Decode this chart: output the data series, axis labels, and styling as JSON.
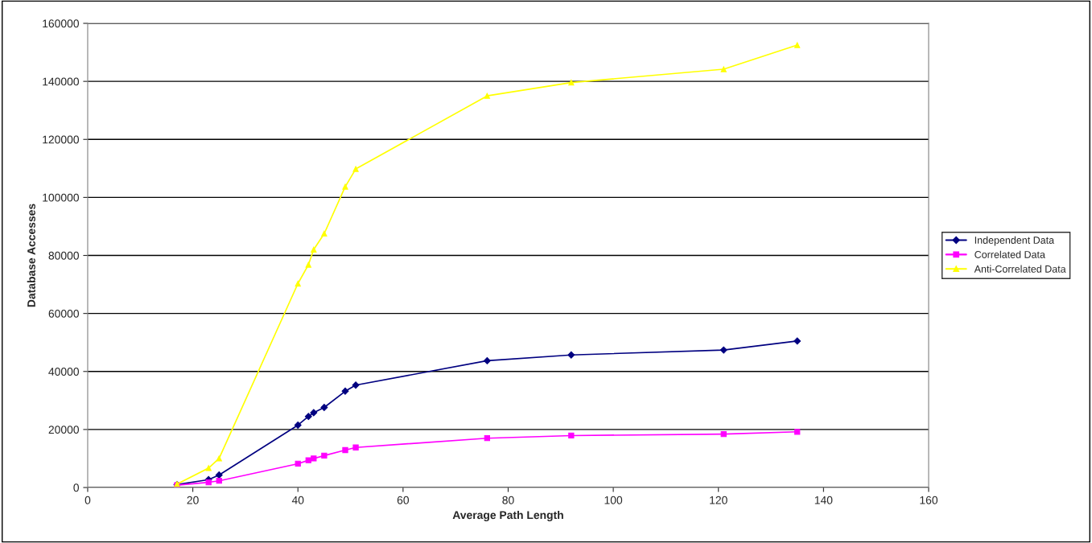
{
  "chart_data": {
    "type": "line",
    "xlabel": "Average Path Length",
    "ylabel": "Database Accesses",
    "x": [
      17,
      23,
      25,
      40,
      42,
      43,
      45,
      49,
      51,
      76,
      92,
      121,
      135
    ],
    "series": [
      {
        "name": "Independent Data",
        "color": "#000080",
        "marker": "diamond",
        "values": [
          1000,
          2700,
          4300,
          21500,
          24500,
          25800,
          27600,
          33200,
          35300,
          43700,
          45700,
          47400,
          50500
        ]
      },
      {
        "name": "Correlated Data",
        "color": "#ff00ff",
        "marker": "square",
        "values": [
          800,
          1800,
          2300,
          8200,
          9400,
          10000,
          11000,
          12900,
          13800,
          17000,
          17900,
          18400,
          19200
        ]
      },
      {
        "name": "Anti-Correlated Data",
        "color": "#ffff00",
        "marker": "triangle",
        "values": [
          1200,
          6700,
          10000,
          70300,
          76800,
          82000,
          87500,
          103700,
          109800,
          135000,
          139600,
          144200,
          152500
        ]
      }
    ],
    "xlim": [
      0,
      160
    ],
    "xticks": [
      0,
      20,
      40,
      60,
      80,
      100,
      120,
      140,
      160
    ],
    "ylim": [
      0,
      160000
    ],
    "yticks": [
      0,
      20000,
      40000,
      60000,
      80000,
      100000,
      120000,
      140000,
      160000
    ],
    "grid": "y",
    "legend": "right",
    "line_style": "solid"
  }
}
